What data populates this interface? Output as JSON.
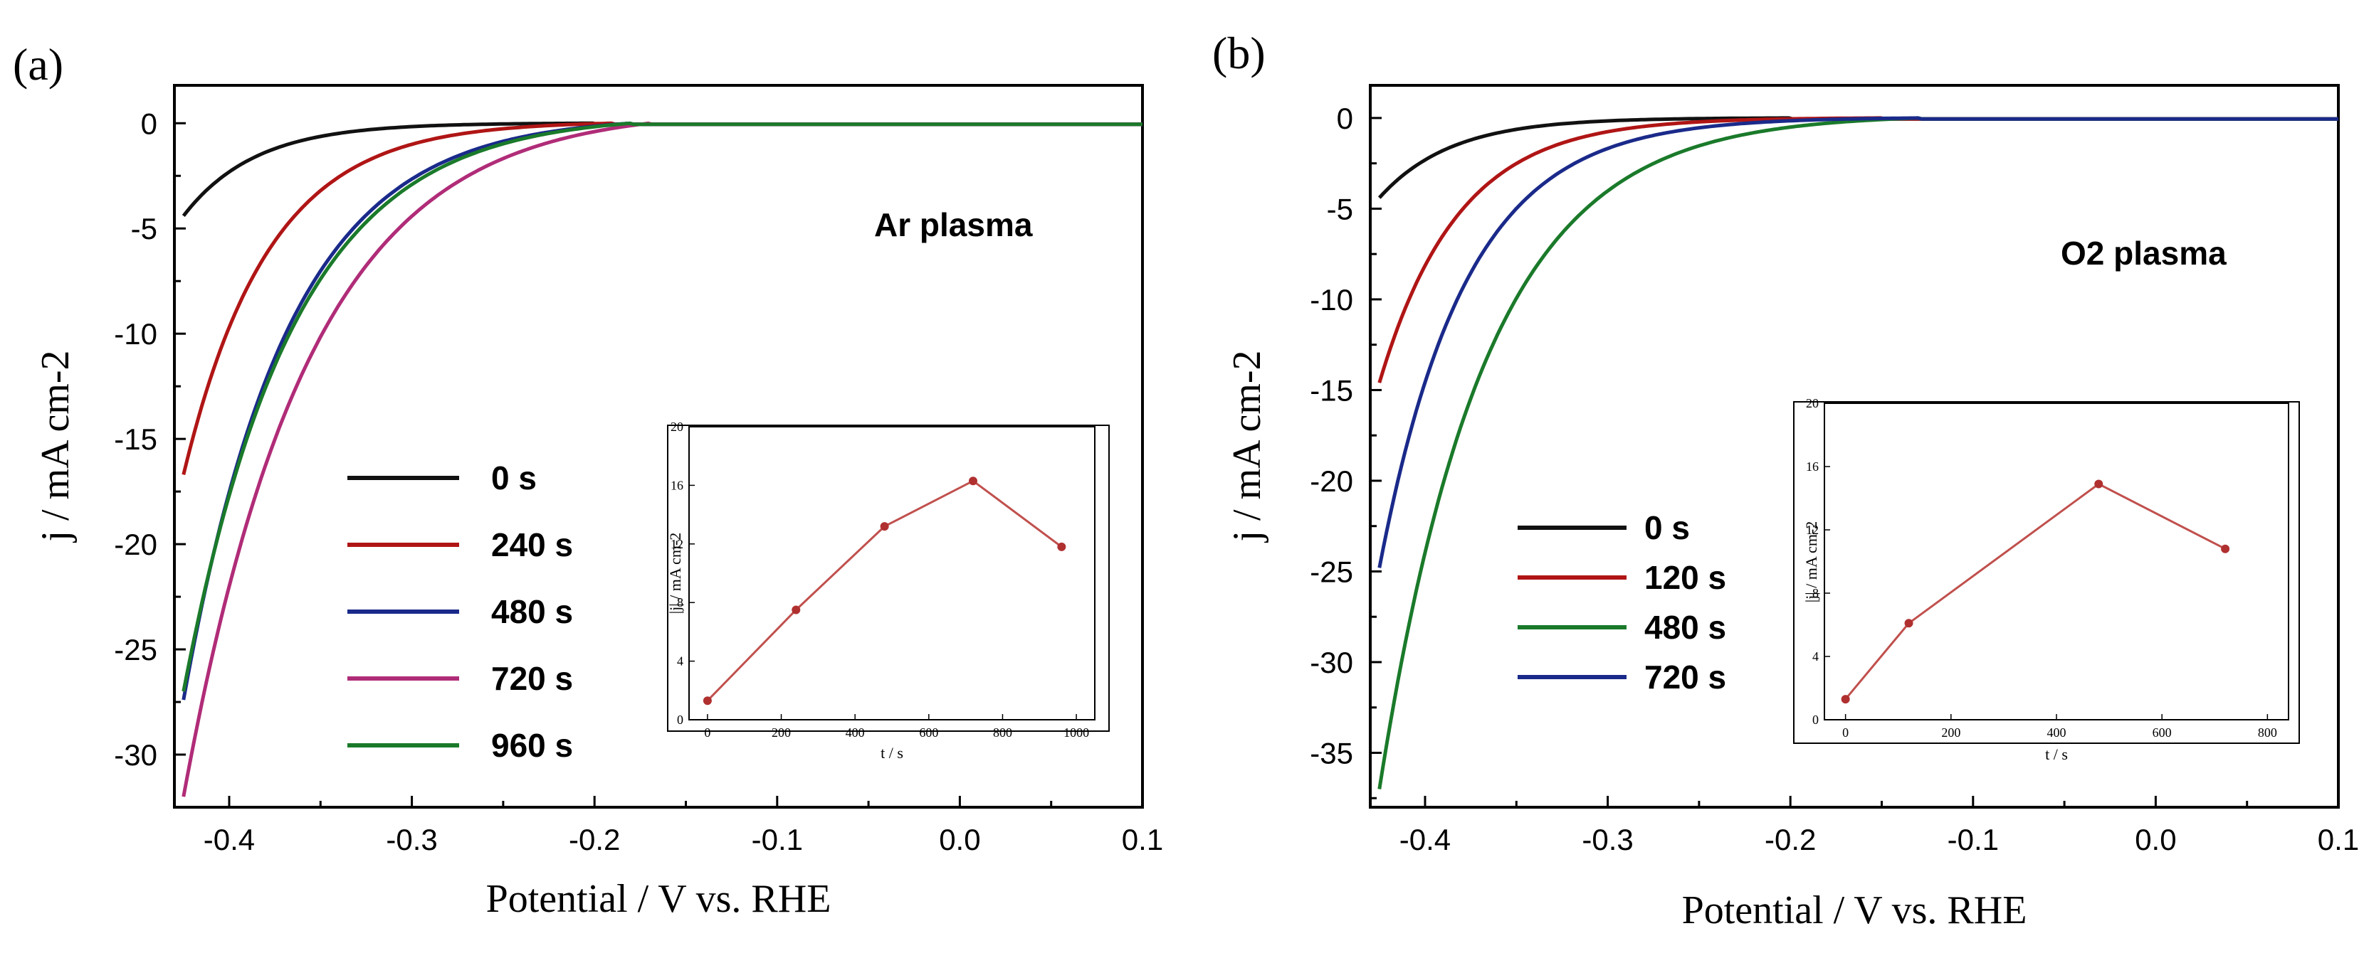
{
  "chart_data": [
    {
      "panel": "(a)",
      "type": "line",
      "annotation": "Ar plasma",
      "xlabel": "Potential / V vs. RHE",
      "ylabel": "j / mA cm-2",
      "xlim": [
        -0.43,
        0.1
      ],
      "ylim": [
        -32.5,
        1.8
      ],
      "xticks": [
        -0.4,
        -0.3,
        -0.2,
        -0.1,
        0.0,
        0.1
      ],
      "xtick_labels": [
        "-0.4",
        "-0.3",
        "-0.2",
        "-0.1",
        "0.0",
        "0.1"
      ],
      "yticks": [
        0,
        -5,
        -10,
        -15,
        -20,
        -25,
        -30
      ],
      "ytick_labels": [
        "0",
        "-5",
        "-10",
        "-15",
        "-20",
        "-25",
        "-30"
      ],
      "series": [
        {
          "name": "0 s",
          "color": "#111111",
          "onset": -0.2,
          "jmin": -4.4,
          "k": 2.4
        },
        {
          "name": "240 s",
          "color": "#b01515",
          "onset": -0.19,
          "jmin": -16.7,
          "k": 2.0
        },
        {
          "name": "480 s",
          "color": "#1a2a8a",
          "onset": -0.18,
          "jmin": -27.4,
          "k": 1.6
        },
        {
          "name": "720 s",
          "color": "#b02c78",
          "onset": -0.17,
          "jmin": -32.0,
          "k": 1.3
        },
        {
          "name": "960 s",
          "color": "#1a7a2a",
          "onset": -0.18,
          "jmin": -27.0,
          "k": 1.5
        }
      ],
      "legend": [
        "0 s",
        "240 s",
        "480 s",
        "720 s",
        "960 s"
      ],
      "inset": {
        "type": "line",
        "xlabel": "t / s",
        "ylabel": "|j| / mA cm-2",
        "xlim": [
          -50,
          1050
        ],
        "ylim": [
          0,
          20
        ],
        "xticks": [
          0,
          200,
          400,
          600,
          800,
          1000
        ],
        "xtick_labels": [
          "0",
          "200",
          "400",
          "600",
          "800",
          "1000"
        ],
        "yticks": [
          0,
          4,
          8,
          12,
          16,
          20
        ],
        "ytick_labels": [
          "0",
          "4",
          "8",
          "12",
          "16",
          "20"
        ],
        "x": [
          0,
          240,
          480,
          720,
          960
        ],
        "y": [
          1.3,
          7.5,
          13.2,
          16.3,
          11.8
        ],
        "color": "#c0504d"
      }
    },
    {
      "panel": "(b)",
      "type": "line",
      "annotation": "O2 plasma",
      "xlabel": "Potential / V vs. RHE",
      "ylabel": "j / mA cm-2",
      "xlim": [
        -0.43,
        0.1
      ],
      "ylim": [
        -38.0,
        1.8
      ],
      "xticks": [
        -0.4,
        -0.3,
        -0.2,
        -0.1,
        0.0,
        0.1
      ],
      "xtick_labels": [
        "-0.4",
        "-0.3",
        "-0.2",
        "-0.1",
        "0.0",
        "0.1"
      ],
      "yticks": [
        0,
        -5,
        -10,
        -15,
        -20,
        -25,
        -30,
        -35
      ],
      "ytick_labels": [
        "0",
        "-5",
        "-10",
        "-15",
        "-20",
        "-25",
        "-30",
        "-35"
      ],
      "series": [
        {
          "name": "0 s",
          "color": "#111111",
          "onset": -0.2,
          "jmin": -4.4,
          "k": 2.4
        },
        {
          "name": "120 s",
          "color": "#b01515",
          "onset": -0.15,
          "jmin": -14.6,
          "k": 2.2
        },
        {
          "name": "480 s",
          "color": "#1a7a2a",
          "onset": -0.13,
          "jmin": -37.0,
          "k": 1.6
        },
        {
          "name": "720 s",
          "color": "#1a2a8a",
          "onset": -0.13,
          "jmin": -24.8,
          "k": 2.0
        }
      ],
      "legend": [
        "0 s",
        "120 s",
        "480 s",
        "720 s"
      ],
      "inset": {
        "type": "line",
        "xlabel": "t / s",
        "ylabel": "|j| / mA cm-2",
        "xlim": [
          -40,
          840
        ],
        "ylim": [
          0,
          20
        ],
        "xticks": [
          0,
          200,
          400,
          600,
          800
        ],
        "xtick_labels": [
          "0",
          "200",
          "400",
          "600",
          "800"
        ],
        "yticks": [
          0,
          4,
          8,
          12,
          16,
          20
        ],
        "ytick_labels": [
          "0",
          "4",
          "8",
          "12",
          "16",
          "20"
        ],
        "x": [
          0,
          120,
          480,
          720
        ],
        "y": [
          1.3,
          6.1,
          14.9,
          10.8
        ],
        "color": "#c0504d"
      }
    }
  ]
}
